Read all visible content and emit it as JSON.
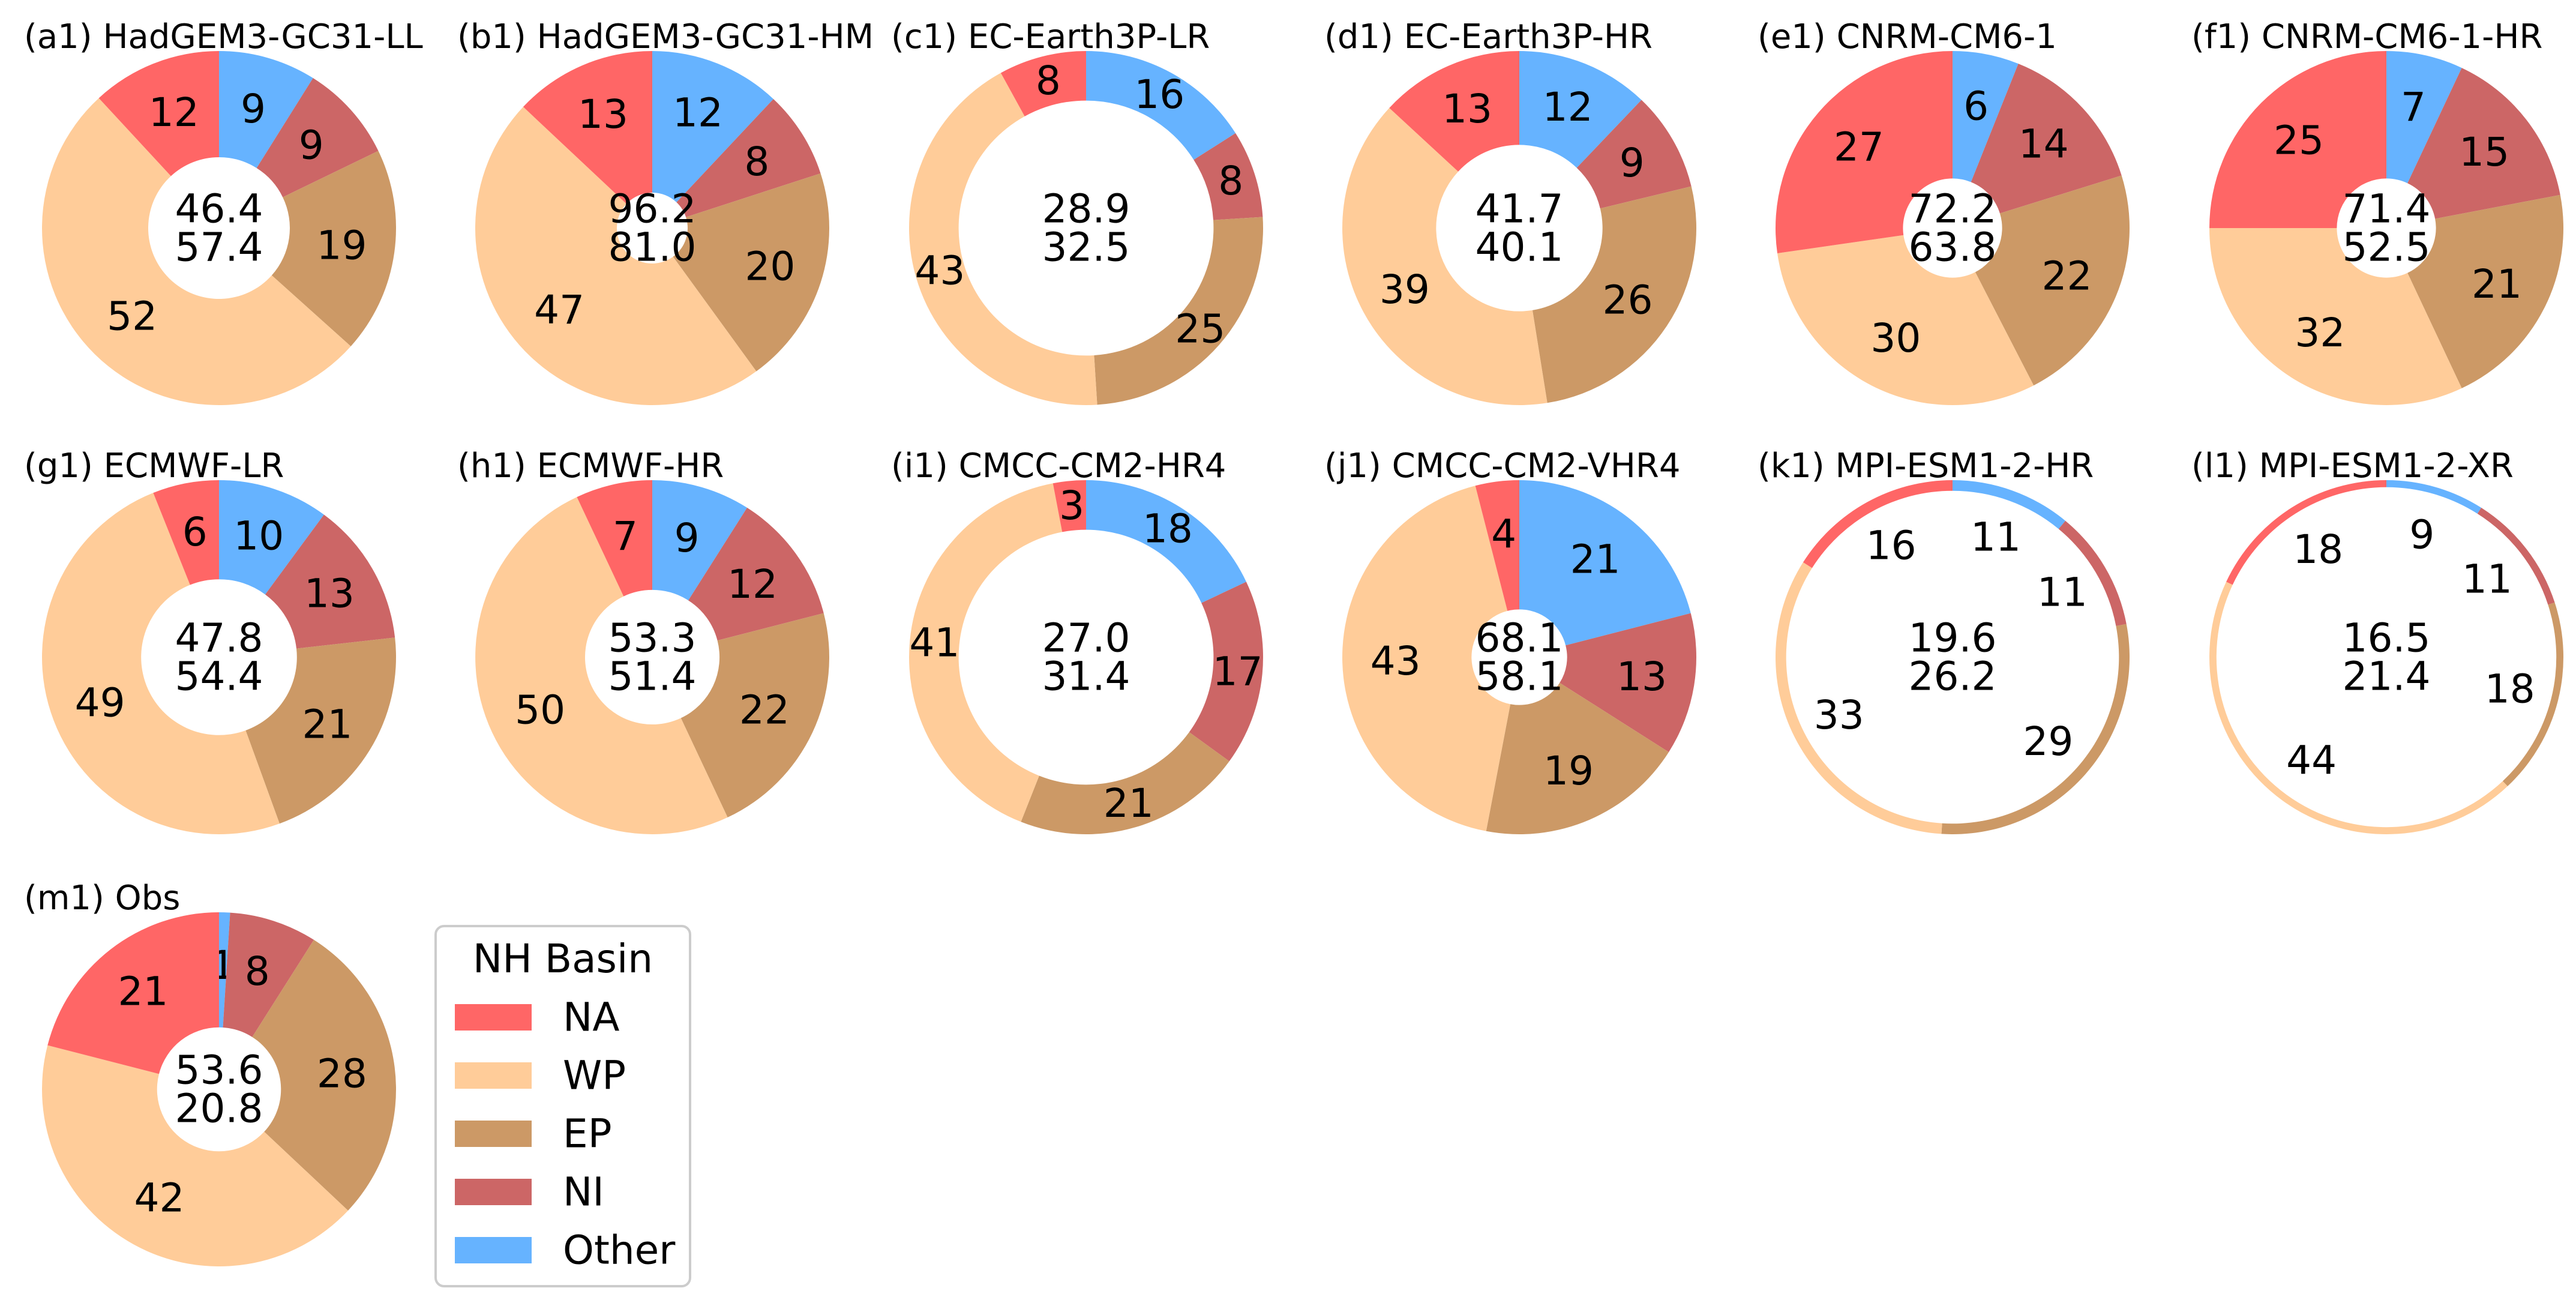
{
  "chart_data": {
    "type": "pie",
    "legend": {
      "title": "NH Basin",
      "placement": "bottom-left",
      "items": [
        {
          "name": "NA",
          "color": "#ff6666"
        },
        {
          "name": "WP",
          "color": "#ffcc99"
        },
        {
          "name": "EP",
          "color": "#cc9966"
        },
        {
          "name": "NI",
          "color": "#cc6666"
        },
        {
          "name": "Other",
          "color": "#66b3ff"
        }
      ]
    },
    "slice_order": [
      "Other",
      "NI",
      "EP",
      "WP",
      "NA"
    ],
    "panels": [
      {
        "title": "(a1) HadGEM3-GC31-LL",
        "values": {
          "Other": 9,
          "NI": 9,
          "EP": 19,
          "WP": 52,
          "NA": 12
        },
        "center": [
          "46.4",
          "57.4"
        ],
        "hole_fraction": 0.4
      },
      {
        "title": "(b1) HadGEM3-GC31-HM",
        "values": {
          "Other": 12,
          "NI": 8,
          "EP": 20,
          "WP": 47,
          "NA": 13
        },
        "center": [
          "96.2",
          "81.0"
        ],
        "hole_fraction": 0.2
      },
      {
        "title": "(c1) EC-Earth3P-LR",
        "values": {
          "Other": 16,
          "NI": 8,
          "EP": 25,
          "WP": 43,
          "NA": 8
        },
        "center": [
          "28.9",
          "32.5"
        ],
        "hole_fraction": 0.72
      },
      {
        "title": "(d1) EC-Earth3P-HR",
        "values": {
          "Other": 12,
          "NI": 9,
          "EP": 26,
          "WP": 39,
          "NA": 13
        },
        "center": [
          "41.7",
          "40.1"
        ],
        "hole_fraction": 0.47
      },
      {
        "title": "(e1) CNRM-CM6-1",
        "values": {
          "Other": 6,
          "NI": 14,
          "EP": 22,
          "WP": 30,
          "NA": 27
        },
        "center": [
          "72.2",
          "63.8"
        ],
        "hole_fraction": 0.28
      },
      {
        "title": "(f1) CNRM-CM6-1-HR",
        "values": {
          "Other": 7,
          "NI": 15,
          "EP": 21,
          "WP": 32,
          "NA": 25
        },
        "center": [
          "71.4",
          "52.5"
        ],
        "hole_fraction": 0.28
      },
      {
        "title": "(g1) ECMWF-LR",
        "values": {
          "Other": 10,
          "NI": 13,
          "EP": 21,
          "WP": 49,
          "NA": 6
        },
        "center": [
          "47.8",
          "54.4"
        ],
        "hole_fraction": 0.44
      },
      {
        "title": "(h1) ECMWF-HR",
        "values": {
          "Other": 9,
          "NI": 12,
          "EP": 22,
          "WP": 50,
          "NA": 7
        },
        "center": [
          "53.3",
          "51.4"
        ],
        "hole_fraction": 0.38
      },
      {
        "title": "(i1) CMCC-CM2-HR4",
        "values": {
          "Other": 18,
          "NI": 17,
          "EP": 21,
          "WP": 41,
          "NA": 3
        },
        "center": [
          "27.0",
          "31.4"
        ],
        "hole_fraction": 0.72
      },
      {
        "title": "(j1) CMCC-CM2-VHR4",
        "values": {
          "Other": 21,
          "NI": 13,
          "EP": 19,
          "WP": 43,
          "NA": 4
        },
        "center": [
          "68.1",
          "58.1"
        ],
        "hole_fraction": 0.27
      },
      {
        "title": "(k1) MPI-ESM1-2-HR",
        "values": {
          "Other": 11,
          "NI": 11,
          "EP": 29,
          "WP": 33,
          "NA": 16
        },
        "center": [
          "19.6",
          "26.2"
        ],
        "hole_fraction": 0.94
      },
      {
        "title": "(l1) MPI-ESM1-2-XR",
        "values": {
          "Other": 9,
          "NI": 11,
          "EP": 18,
          "WP": 44,
          "NA": 18
        },
        "center": [
          "16.5",
          "21.4"
        ],
        "hole_fraction": 0.96
      },
      {
        "title": "(m1) Obs",
        "values": {
          "Other": 1,
          "NI": 8,
          "EP": 28,
          "WP": 42,
          "NA": 21
        },
        "center": [
          "53.6",
          "20.8"
        ],
        "hole_fraction": 0.35
      }
    ]
  }
}
